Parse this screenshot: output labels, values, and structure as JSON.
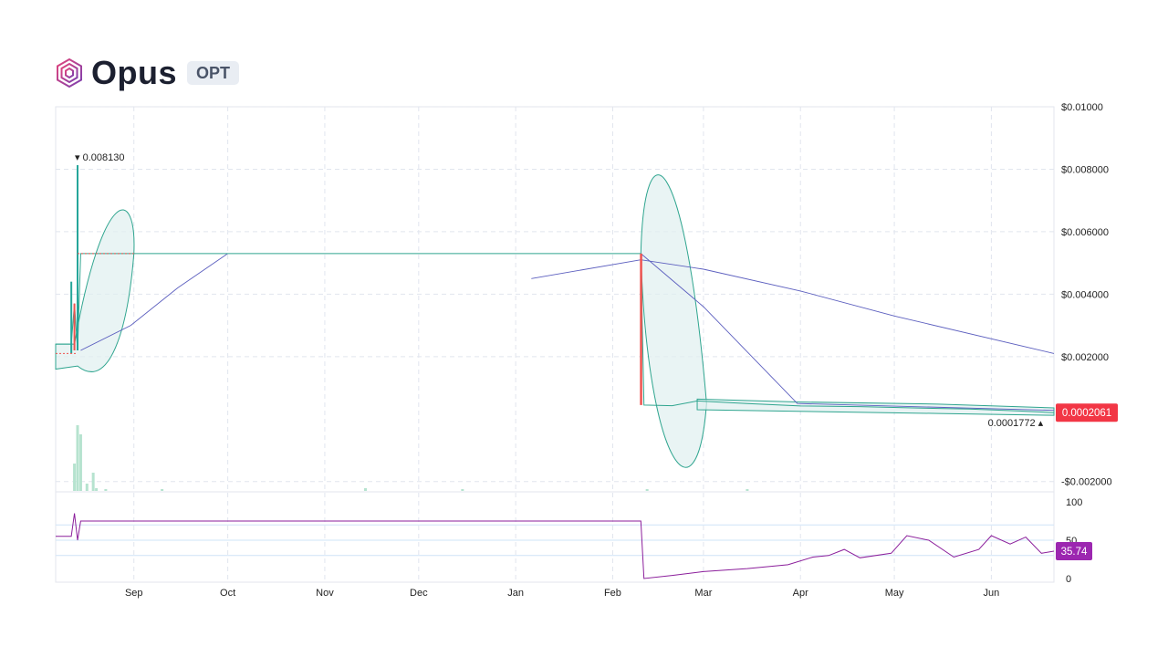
{
  "header": {
    "name": "Opus",
    "ticker": "OPT"
  },
  "colors": {
    "up": "#26a69a",
    "down": "#ef5350",
    "ma": "#5c5fbf",
    "band_fill": "#dff0ef",
    "band_line": "#2fa58f",
    "rsi": "#8b1e9b",
    "price_badge": "#f23645",
    "rsi_badge": "#9c27b0",
    "grid": "#e1e5ee"
  },
  "chart_data": [
    {
      "type": "line",
      "panel": "price",
      "y_axis": {
        "ticks": [
          "$0.01000",
          "$0.008000",
          "$0.006000",
          "$0.004000",
          "$0.002000",
          "-$0.002000"
        ],
        "tick_values": [
          0.01,
          0.008,
          0.006,
          0.004,
          0.002,
          -0.002
        ],
        "ylim": [
          -0.0023,
          0.01
        ]
      },
      "x_axis": {
        "ticks": [
          "Sep",
          "Oct",
          "Nov",
          "Dec",
          "Jan",
          "Feb",
          "Mar",
          "Apr",
          "May",
          "Jun"
        ],
        "xlim": [
          "2023-08-07",
          "2024-06-21"
        ]
      },
      "annotations": {
        "high_label": "0.008130",
        "high_value": 0.00813,
        "high_date": "2023-08-14",
        "low_label": "0.0001772",
        "low_value": 0.0001772,
        "low_date": "2024-06-19",
        "last_price_label": "0.0002061",
        "last_price_value": 0.0002061
      },
      "price_series": [
        [
          "2023-08-07",
          0.0024
        ],
        [
          "2023-08-12",
          0.0024
        ],
        [
          "2023-08-13",
          0.0037
        ],
        [
          "2023-08-14",
          0.0022
        ],
        [
          "2023-08-15",
          0.0053
        ],
        [
          "2023-09-15",
          0.0053
        ],
        [
          "2023-12-01",
          0.0053
        ],
        [
          "2024-02-10",
          0.0053
        ],
        [
          "2024-02-11",
          0.00045
        ],
        [
          "2024-02-20",
          0.00043
        ],
        [
          "2024-02-28",
          0.00058
        ],
        [
          "2024-03-15",
          0.0005
        ],
        [
          "2024-04-01",
          0.00042
        ],
        [
          "2024-04-20",
          0.0004
        ],
        [
          "2024-05-10",
          0.00035
        ],
        [
          "2024-05-25",
          0.00032
        ],
        [
          "2024-06-10",
          0.00026
        ],
        [
          "2024-06-21",
          0.0002061
        ]
      ],
      "ma_series": [
        [
          "2023-08-15",
          0.0022
        ],
        [
          "2023-08-31",
          0.003
        ],
        [
          "2023-09-15",
          0.0042
        ],
        [
          "2023-10-01",
          0.0053
        ]
      ],
      "ma_series_2": [
        [
          "2024-01-06",
          0.0045
        ],
        [
          "2024-02-10",
          0.0051
        ],
        [
          "2024-03-01",
          0.0048
        ],
        [
          "2024-04-01",
          0.0041
        ],
        [
          "2024-05-01",
          0.0033
        ],
        [
          "2024-06-21",
          0.0021
        ]
      ],
      "ma_series_3": [
        [
          "2024-02-10",
          0.0053
        ],
        [
          "2024-03-01",
          0.0036
        ],
        [
          "2024-03-31",
          0.0005
        ],
        [
          "2024-06-21",
          0.00028
        ]
      ]
    },
    {
      "type": "line",
      "panel": "rsi",
      "y_axis": {
        "ticks": [
          "100",
          "50",
          "0"
        ],
        "tick_values": [
          100,
          50,
          0
        ],
        "ylim": [
          0,
          100
        ]
      },
      "last_value_label": "35.74",
      "levels": [
        70,
        50,
        30
      ],
      "series": [
        [
          "2023-08-07",
          55
        ],
        [
          "2023-08-12",
          55
        ],
        [
          "2023-08-13",
          85
        ],
        [
          "2023-08-14",
          50
        ],
        [
          "2023-08-15",
          75
        ],
        [
          "2024-02-10",
          75
        ],
        [
          "2024-02-11",
          0
        ],
        [
          "2024-02-20",
          4
        ],
        [
          "2024-03-01",
          9
        ],
        [
          "2024-03-15",
          13
        ],
        [
          "2024-03-28",
          18
        ],
        [
          "2024-04-05",
          28
        ],
        [
          "2024-04-10",
          30
        ],
        [
          "2024-04-15",
          38
        ],
        [
          "2024-04-20",
          27
        ],
        [
          "2024-04-30",
          33
        ],
        [
          "2024-05-05",
          56
        ],
        [
          "2024-05-12",
          50
        ],
        [
          "2024-05-20",
          28
        ],
        [
          "2024-05-28",
          38
        ],
        [
          "2024-06-01",
          56
        ],
        [
          "2024-06-07",
          45
        ],
        [
          "2024-06-12",
          54
        ],
        [
          "2024-06-17",
          33
        ],
        [
          "2024-06-21",
          35.74
        ]
      ]
    }
  ]
}
